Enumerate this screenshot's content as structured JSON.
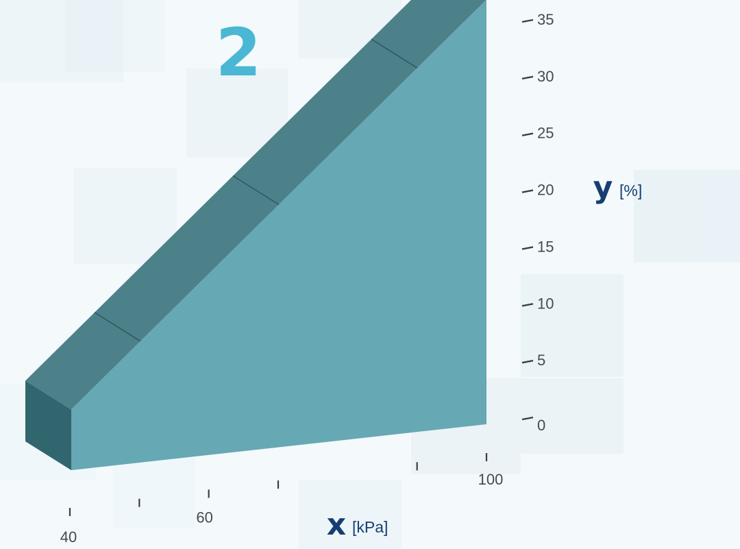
{
  "badge": "2",
  "colors": {
    "front": "#66a8b4",
    "top": "#4c818a",
    "side": "#31666f",
    "badge": "#4ab7d4",
    "axis_label": "#163e73",
    "tick": "#3a3f43"
  },
  "chart_data": {
    "type": "area",
    "x": [
      40,
      100
    ],
    "y": [
      5,
      35
    ],
    "x_axis": {
      "variable": "x",
      "unit": "[kPa]",
      "ticks": [
        40,
        50,
        60,
        70,
        80,
        90,
        100
      ],
      "labels": [
        "40",
        "60",
        "100"
      ],
      "range": [
        40,
        100
      ]
    },
    "y_axis": {
      "variable": "y",
      "unit": "[%]",
      "ticks": [
        "0",
        "5",
        "10",
        "15",
        "20",
        "25",
        "30",
        "35"
      ],
      "range": [
        0,
        35
      ]
    },
    "grid": false,
    "legend": "none"
  }
}
